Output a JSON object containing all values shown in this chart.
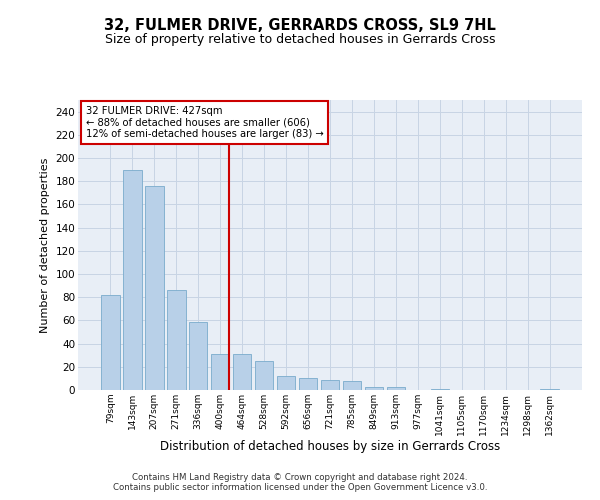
{
  "title": "32, FULMER DRIVE, GERRARDS CROSS, SL9 7HL",
  "subtitle": "Size of property relative to detached houses in Gerrards Cross",
  "xlabel": "Distribution of detached houses by size in Gerrards Cross",
  "ylabel": "Number of detached properties",
  "categories": [
    "79sqm",
    "143sqm",
    "207sqm",
    "271sqm",
    "336sqm",
    "400sqm",
    "464sqm",
    "528sqm",
    "592sqm",
    "656sqm",
    "721sqm",
    "785sqm",
    "849sqm",
    "913sqm",
    "977sqm",
    "1041sqm",
    "1105sqm",
    "1170sqm",
    "1234sqm",
    "1298sqm",
    "1362sqm"
  ],
  "values": [
    82,
    190,
    176,
    86,
    59,
    31,
    31,
    25,
    12,
    10,
    9,
    8,
    3,
    3,
    0,
    1,
    0,
    0,
    0,
    0,
    1
  ],
  "bar_color": "#b8d0e8",
  "bar_edge_color": "#7aabcc",
  "vline_color": "#cc0000",
  "annotation_text": "32 FULMER DRIVE: 427sqm\n← 88% of detached houses are smaller (606)\n12% of semi-detached houses are larger (83) →",
  "annotation_box_color": "#ffffff",
  "annotation_box_edge": "#cc0000",
  "ylim": [
    0,
    250
  ],
  "yticks": [
    0,
    20,
    40,
    60,
    80,
    100,
    120,
    140,
    160,
    180,
    200,
    220,
    240
  ],
  "grid_color": "#c8d4e4",
  "background_color": "#e8eef6",
  "footer_line1": "Contains HM Land Registry data © Crown copyright and database right 2024.",
  "footer_line2": "Contains public sector information licensed under the Open Government Licence v3.0.",
  "title_fontsize": 10.5,
  "subtitle_fontsize": 9,
  "xlabel_fontsize": 8.5,
  "ylabel_fontsize": 8
}
